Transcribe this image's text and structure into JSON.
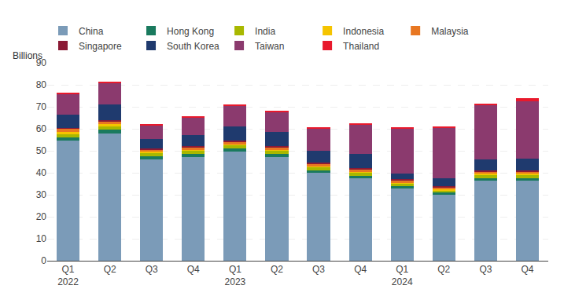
{
  "chart_data": {
    "type": "bar",
    "stacked": true,
    "ylabel": "Billions",
    "categories": [
      "Q1\n2022",
      "Q2",
      "Q3",
      "Q4",
      "Q1\n2023",
      "Q2",
      "Q3",
      "Q4",
      "Q1\n2024",
      "Q2",
      "Q3",
      "Q4"
    ],
    "series": [
      {
        "name": "China",
        "color": "#7B9BB8",
        "values": [
          54.5,
          58.0,
          46.0,
          47.0,
          49.5,
          47.0,
          40.0,
          37.5,
          33.0,
          30.0,
          36.5,
          36.5
        ]
      },
      {
        "name": "Hong Kong",
        "color": "#1A7A5E",
        "values": [
          1.5,
          1.5,
          1.5,
          1.5,
          1.5,
          1.5,
          1.0,
          1.0,
          1.0,
          1.0,
          1.0,
          1.0
        ]
      },
      {
        "name": "India",
        "color": "#A8B800",
        "values": [
          1.5,
          1.5,
          1.5,
          1.5,
          1.5,
          1.5,
          1.5,
          1.5,
          1.0,
          1.0,
          1.5,
          1.5
        ]
      },
      {
        "name": "Indonesia",
        "color": "#F5C400",
        "values": [
          1.0,
          1.0,
          0.5,
          0.5,
          0.5,
          0.5,
          0.5,
          0.5,
          0.5,
          0.5,
          0.5,
          0.5
        ]
      },
      {
        "name": "Malaysia",
        "color": "#E87722",
        "values": [
          1.5,
          1.5,
          1.0,
          1.0,
          1.0,
          1.0,
          1.0,
          1.0,
          1.0,
          1.0,
          1.0,
          1.0
        ]
      },
      {
        "name": "Singapore",
        "color": "#8B1A35",
        "values": [
          0.5,
          0.5,
          0.5,
          0.5,
          0.5,
          0.5,
          0.5,
          0.5,
          0.5,
          0.5,
          0.5,
          0.5
        ]
      },
      {
        "name": "South Korea",
        "color": "#1F3A6E",
        "values": [
          6.0,
          7.0,
          4.5,
          5.0,
          6.5,
          6.5,
          5.5,
          6.5,
          2.5,
          3.5,
          5.0,
          5.5
        ]
      },
      {
        "name": "Taiwan",
        "color": "#8B3A6E",
        "values": [
          9.5,
          10.0,
          6.0,
          8.0,
          9.5,
          9.0,
          10.0,
          13.5,
          20.5,
          23.0,
          25.0,
          26.0
        ]
      },
      {
        "name": "Thailand",
        "color": "#E8192C",
        "values": [
          0.5,
          0.5,
          0.5,
          0.5,
          0.5,
          0.5,
          0.5,
          0.5,
          0.5,
          0.5,
          0.5,
          1.5
        ]
      }
    ],
    "ylim": [
      0,
      90
    ],
    "yticks": [
      0,
      10,
      20,
      30,
      40,
      50,
      60,
      70,
      80,
      90
    ],
    "grid": true,
    "legend": "top"
  }
}
